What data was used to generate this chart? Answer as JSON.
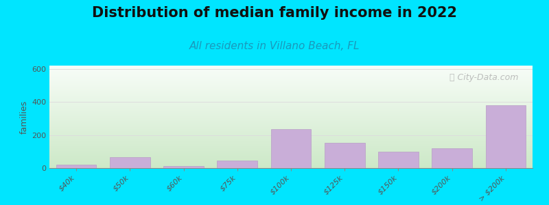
{
  "title": "Distribution of median family income in 2022",
  "subtitle": "All residents in Villano Beach, FL",
  "ylabel": "families",
  "tick_labels": [
    "$40k",
    "$50k",
    "$60k",
    "$75k",
    "$100k",
    "$125k",
    "$150k",
    "$200k",
    "> $200k"
  ],
  "bar_values": [
    20,
    65,
    12,
    45,
    235,
    155,
    100,
    120,
    380
  ],
  "bar_color": "#c9aed8",
  "bar_edge_color": "#b89cc6",
  "background_color": "#00e5ff",
  "plot_bg_top": "#f5faf5",
  "plot_bg_bottom": "#d4ecd0",
  "ylim": [
    0,
    620
  ],
  "yticks": [
    0,
    200,
    400,
    600
  ],
  "grid_color": "#dddddd",
  "title_fontsize": 15,
  "subtitle_fontsize": 11,
  "subtitle_color": "#1a99bb",
  "ylabel_fontsize": 9,
  "watermark": "ⓘ City-Data.com",
  "watermark_color": "#aaaaaa"
}
